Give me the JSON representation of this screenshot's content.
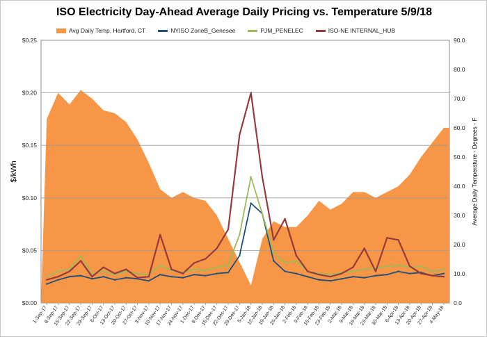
{
  "chart_data": {
    "type": "line",
    "title": "ISO Electricity Day-Ahead Average Daily Pricing vs. Temperature 5/9/18",
    "ylabel": "$/kWh",
    "y2label": "Average Daily Temperature - Degrees - F",
    "ylim": [
      0,
      0.25
    ],
    "y2lim": [
      0,
      90
    ],
    "yticks": [
      "$0.00",
      "$0.05",
      "$0.10",
      "$0.15",
      "$0.20",
      "$0.25"
    ],
    "y2ticks": [
      "0.0",
      "10.0",
      "20.0",
      "30.0",
      "40.0",
      "50.0",
      "60.0",
      "70.0",
      "80.0",
      "90.0"
    ],
    "categories": [
      "1-Sep-17",
      "8-Sep-17",
      "15-Sep-17",
      "22-Sep-17",
      "29-Sep-17",
      "6-Oct-17",
      "13-Oct-17",
      "20-Oct-17",
      "27-Oct-17",
      "3-Nov-17",
      "10-Nov-17",
      "17-Nov-17",
      "24-Nov-17",
      "1-Dec-17",
      "8-Dec-17",
      "15-Dec-17",
      "22-Dec-17",
      "29-Dec-17",
      "5-Jan-18",
      "12-Jan-18",
      "19-Jan-18",
      "26-Jan-18",
      "2-Feb-18",
      "9-Feb-18",
      "16-Feb-18",
      "23-Feb-18",
      "2-Mar-18",
      "9-Mar-18",
      "16-Mar-18",
      "23-Mar-18",
      "30-Mar-18",
      "6-Apr-18",
      "13-Apr-18",
      "20-Apr-18",
      "27-Apr-18",
      "4-May-18"
    ],
    "grid": true,
    "legend_position": "top",
    "series": [
      {
        "name": "Avg Daily Temp, Hartford, CT",
        "kind": "area",
        "axis": "right",
        "color": "#f79646",
        "values": [
          63,
          72,
          68,
          73,
          70,
          66,
          65,
          62,
          56,
          48,
          39,
          36,
          38,
          36,
          35,
          30,
          22,
          14,
          6,
          22,
          28,
          26,
          26,
          30,
          35,
          32,
          34,
          38,
          38,
          36,
          38,
          40,
          44,
          50,
          55,
          60
        ]
      },
      {
        "name": "NYISO ZoneB_Genesee",
        "kind": "line",
        "axis": "left",
        "color": "#1f4e79",
        "values": [
          0.018,
          0.022,
          0.025,
          0.026,
          0.023,
          0.025,
          0.022,
          0.024,
          0.023,
          0.021,
          0.027,
          0.025,
          0.024,
          0.027,
          0.026,
          0.028,
          0.029,
          0.045,
          0.095,
          0.085,
          0.04,
          0.03,
          0.028,
          0.025,
          0.022,
          0.021,
          0.023,
          0.025,
          0.024,
          0.026,
          0.027,
          0.03,
          0.028,
          0.029,
          0.026,
          0.028
        ]
      },
      {
        "name": "PJM_PENELEC",
        "kind": "line",
        "axis": "left",
        "color": "#9bbb59",
        "values": [
          0.025,
          0.03,
          0.032,
          0.045,
          0.028,
          0.03,
          0.027,
          0.03,
          0.028,
          0.027,
          0.036,
          0.031,
          0.029,
          0.032,
          0.031,
          0.034,
          0.036,
          0.065,
          0.12,
          0.085,
          0.048,
          0.038,
          0.04,
          0.03,
          0.028,
          0.027,
          0.029,
          0.03,
          0.032,
          0.033,
          0.035,
          0.036,
          0.034,
          0.035,
          0.03,
          0.032
        ]
      },
      {
        "name": "ISO-NE INTERNAL_HUB",
        "kind": "line",
        "axis": "left",
        "color": "#963b3b",
        "values": [
          0.022,
          0.025,
          0.03,
          0.04,
          0.025,
          0.034,
          0.028,
          0.032,
          0.024,
          0.025,
          0.065,
          0.032,
          0.028,
          0.038,
          0.042,
          0.052,
          0.07,
          0.16,
          0.2,
          0.12,
          0.06,
          0.08,
          0.045,
          0.03,
          0.027,
          0.025,
          0.028,
          0.034,
          0.052,
          0.03,
          0.062,
          0.06,
          0.035,
          0.028,
          0.026,
          0.025
        ]
      }
    ]
  }
}
